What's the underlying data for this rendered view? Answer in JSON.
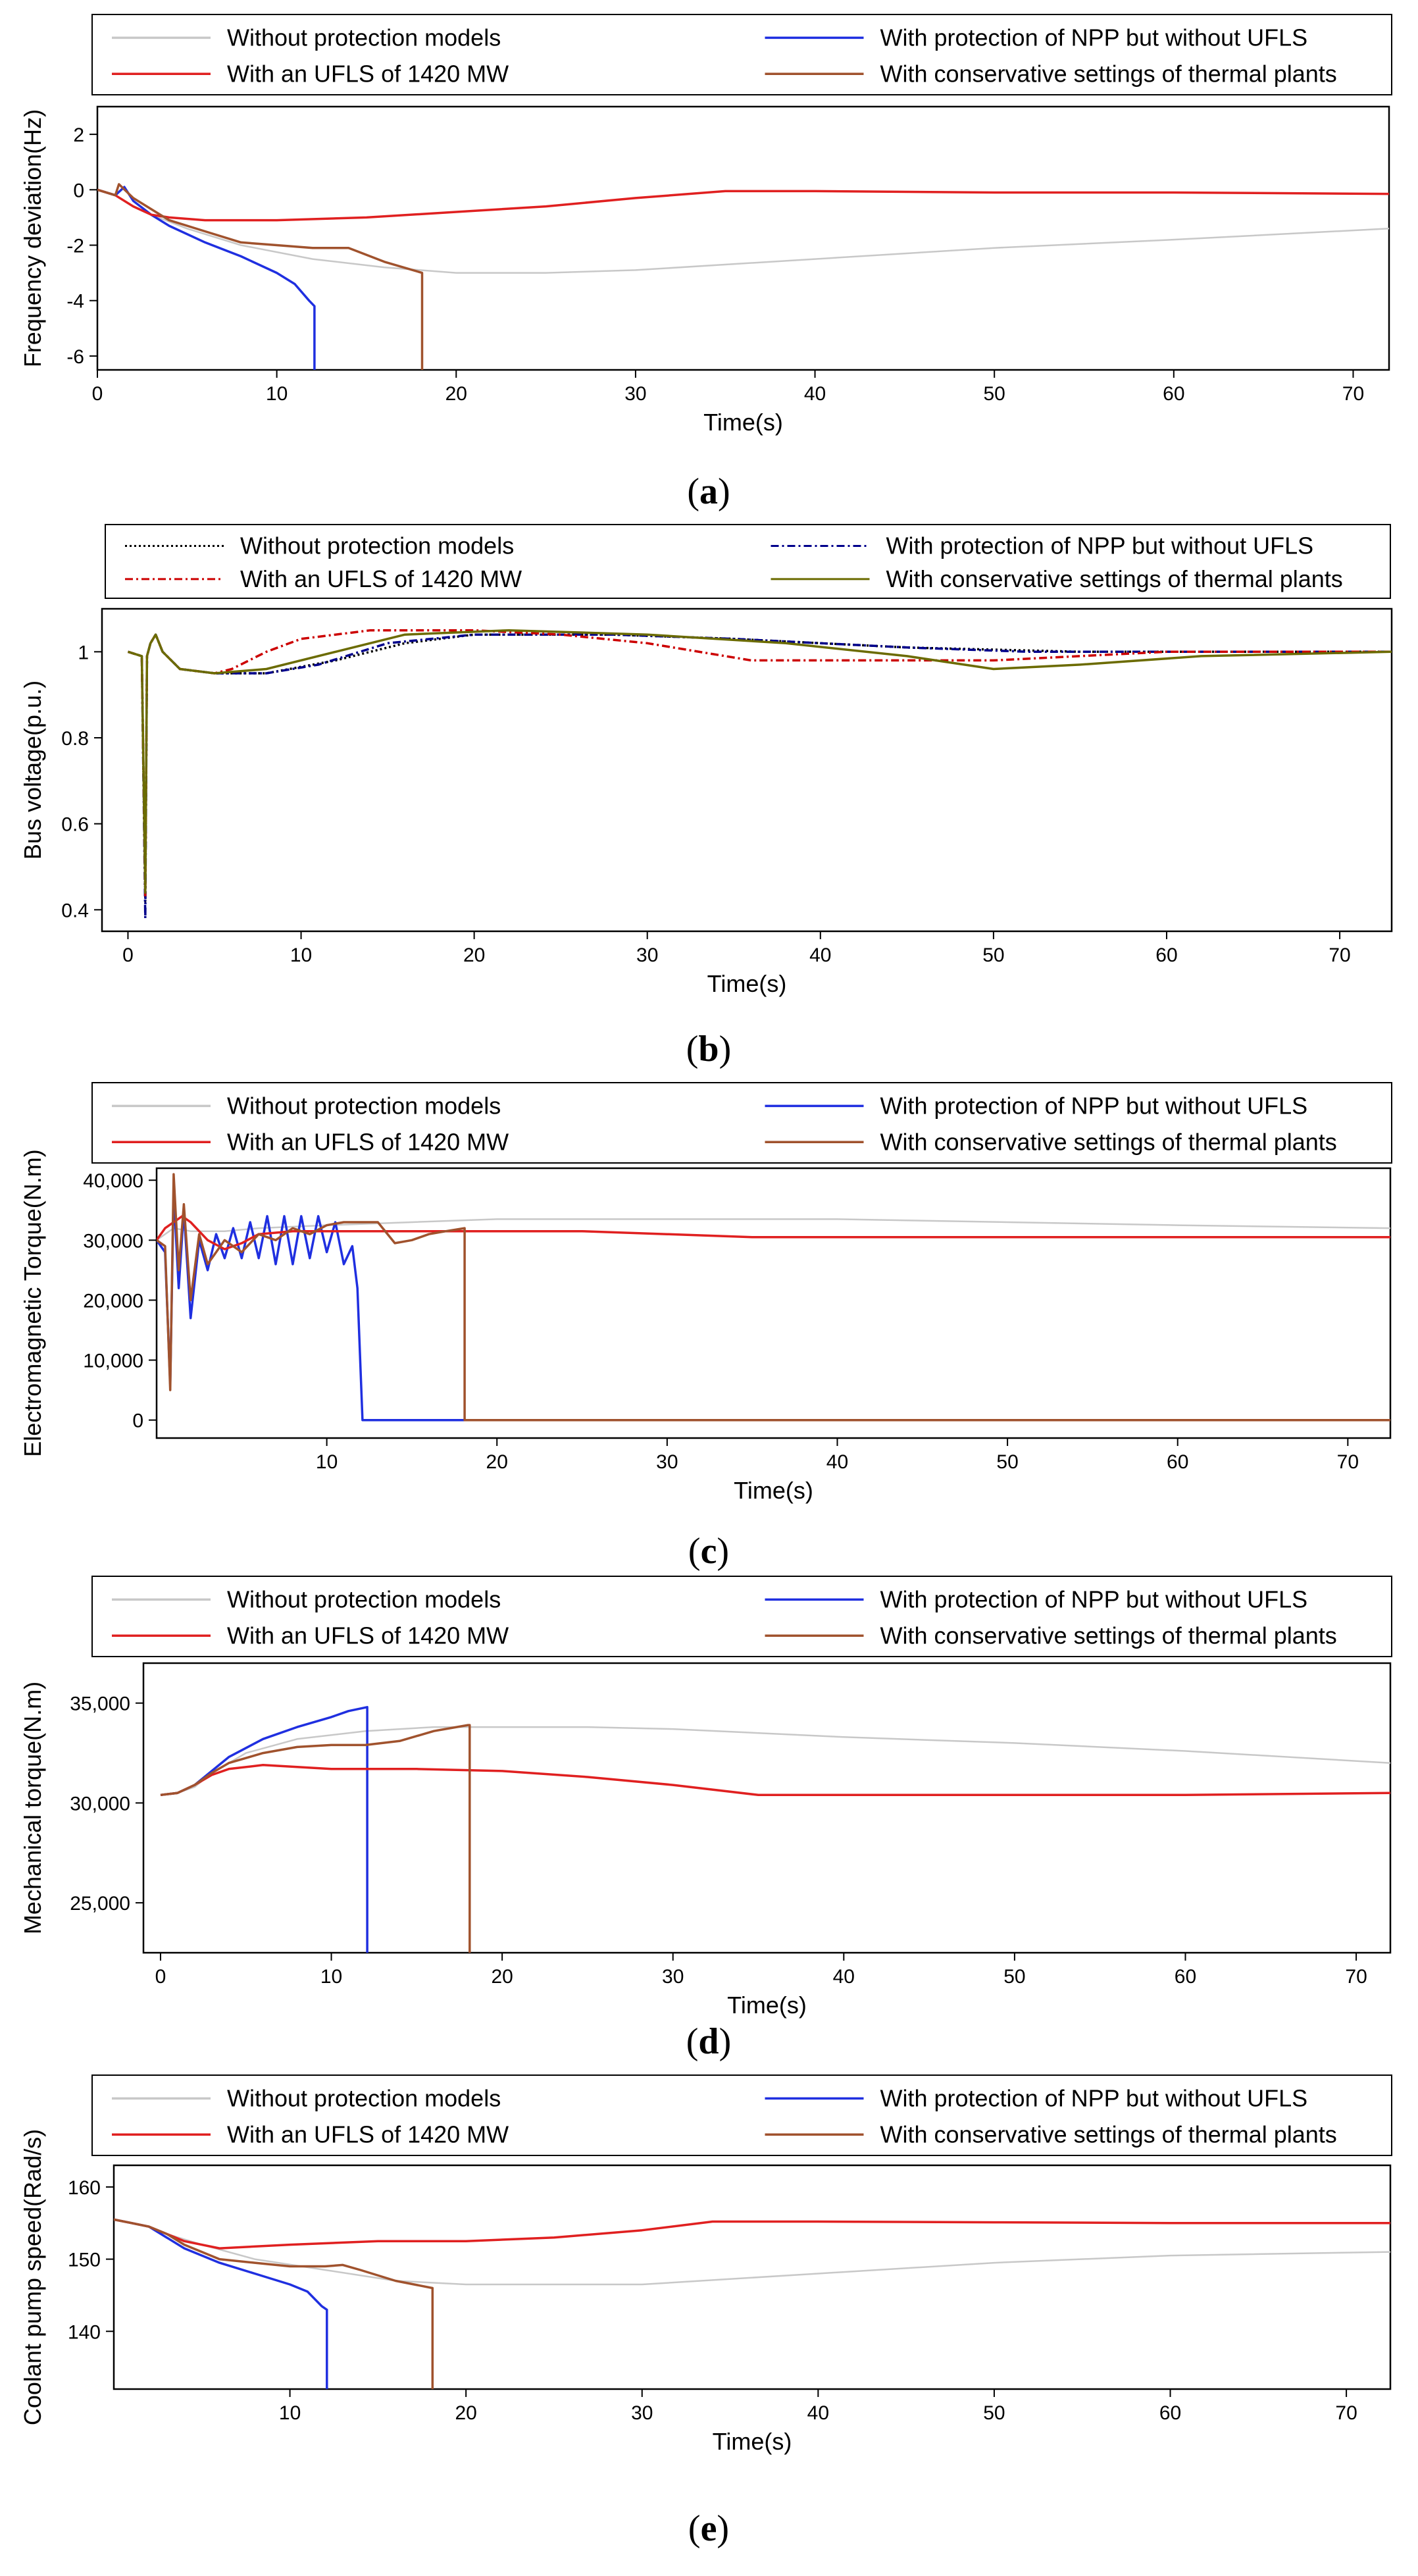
{
  "legend_series": {
    "without": "Without protection models",
    "npp": "With protection of NPP but without UFLS",
    "ufls": "With an UFLS of 1420 MW",
    "conservative": "With conservative settings of thermal plants"
  },
  "colors": {
    "without": "#c8c8c8",
    "npp": "#1f2fe0",
    "ufls": "#e02020",
    "conservative": "#a0522d",
    "without_b": "#000000",
    "npp_b": "#00008b",
    "ufls_b": "#cc0000",
    "conservative_b": "#6b6b00"
  },
  "chart_data": [
    {
      "panel": "a",
      "type": "line",
      "label_open": "(",
      "label_letter": "a",
      "label_close": ")",
      "xlabel": "Time(s)",
      "ylabel": "Frequency deviation(Hz)",
      "xlim": [
        0,
        72
      ],
      "ylim": [
        -6.5,
        3
      ],
      "xticks": [
        0,
        10,
        20,
        30,
        40,
        50,
        60,
        70
      ],
      "xtick_labels": [
        "0",
        "10",
        "20",
        "30",
        "40",
        "50",
        "60",
        "70"
      ],
      "yticks": [
        2,
        0,
        -2,
        -4,
        -6
      ],
      "ytick_labels": [
        "2",
        "0",
        "-2",
        "-4",
        "-6"
      ],
      "series": [
        {
          "key": "without",
          "x": [
            0,
            1,
            2,
            3,
            5,
            8,
            12,
            16,
            20,
            25,
            30,
            40,
            50,
            60,
            72
          ],
          "y": [
            0,
            -0.2,
            -0.6,
            -0.9,
            -1.4,
            -2.0,
            -2.5,
            -2.8,
            -3.0,
            -3.0,
            -2.9,
            -2.5,
            -2.1,
            -1.8,
            -1.4
          ]
        },
        {
          "key": "npp",
          "x": [
            0,
            1,
            1.5,
            2,
            3,
            4,
            6,
            8,
            10,
            11,
            11.8,
            12.1,
            12.1
          ],
          "y": [
            0,
            -0.2,
            0.1,
            -0.4,
            -0.9,
            -1.3,
            -1.9,
            -2.4,
            -3.0,
            -3.4,
            -4.0,
            -4.2,
            -6.5
          ]
        },
        {
          "key": "ufls",
          "x": [
            0,
            1,
            2,
            3,
            4,
            6,
            10,
            15,
            20,
            25,
            30,
            35,
            40,
            50,
            60,
            72
          ],
          "y": [
            0,
            -0.2,
            -0.6,
            -0.9,
            -1.0,
            -1.1,
            -1.1,
            -1.0,
            -0.8,
            -0.6,
            -0.3,
            -0.05,
            -0.05,
            -0.1,
            -0.1,
            -0.15
          ]
        },
        {
          "key": "conservative",
          "x": [
            0,
            1,
            1.2,
            2,
            3,
            4,
            6,
            8,
            10,
            12,
            14,
            16,
            18.1,
            18.1
          ],
          "y": [
            0,
            -0.2,
            0.2,
            -0.3,
            -0.7,
            -1.1,
            -1.5,
            -1.9,
            -2.0,
            -2.1,
            -2.1,
            -2.6,
            -3.0,
            -6.5
          ]
        }
      ]
    },
    {
      "panel": "b",
      "type": "line",
      "label_open": "(",
      "label_letter": "b",
      "label_close": ")",
      "xlabel": "Time(s)",
      "ylabel": "Bus voltage(p.u.)",
      "xlim": [
        -1.5,
        73
      ],
      "ylim": [
        0.35,
        1.1
      ],
      "xticks": [
        0,
        10,
        20,
        30,
        40,
        50,
        60,
        70
      ],
      "xtick_labels": [
        "0",
        "10",
        "20",
        "30",
        "40",
        "50",
        "60",
        "70"
      ],
      "yticks": [
        1,
        0.8,
        0.6,
        0.4
      ],
      "ytick_labels": [
        "1",
        "0.8",
        "0.6",
        "0.4"
      ],
      "series": [
        {
          "key": "without_b",
          "dash": "dotted",
          "x": [
            0,
            0.8,
            1.0,
            1.1,
            1.3,
            1.6,
            2,
            3,
            5,
            8,
            12,
            16,
            20,
            28,
            35,
            45,
            55,
            65,
            73
          ],
          "y": [
            1.0,
            0.99,
            0.42,
            0.99,
            1.02,
            1.04,
            1.0,
            0.96,
            0.95,
            0.95,
            0.98,
            1.02,
            1.04,
            1.04,
            1.03,
            1.01,
            1.0,
            1.0,
            1.0
          ]
        },
        {
          "key": "npp_b",
          "dash": "dashdot",
          "x": [
            0,
            0.8,
            1.0,
            1.1,
            1.3,
            1.6,
            2,
            3,
            5,
            8,
            11,
            15,
            20,
            28,
            35,
            45,
            52,
            60,
            73
          ],
          "y": [
            1.0,
            0.99,
            0.38,
            0.99,
            1.02,
            1.04,
            1.0,
            0.96,
            0.95,
            0.95,
            0.97,
            1.02,
            1.04,
            1.04,
            1.03,
            1.01,
            1.0,
            1.0,
            1.0
          ]
        },
        {
          "key": "ufls_b",
          "dash": "dashdot",
          "x": [
            0,
            0.8,
            1.0,
            1.1,
            1.3,
            1.6,
            2,
            3,
            5,
            6,
            8,
            10,
            14,
            20,
            25,
            30,
            36,
            42,
            50,
            55,
            60,
            73
          ],
          "y": [
            1.0,
            0.99,
            0.43,
            0.99,
            1.02,
            1.04,
            1.0,
            0.96,
            0.95,
            0.96,
            1.0,
            1.03,
            1.05,
            1.05,
            1.04,
            1.02,
            0.98,
            0.98,
            0.98,
            0.99,
            1.0,
            1.0
          ]
        },
        {
          "key": "conservative_b",
          "dash": "solid",
          "x": [
            0,
            0.8,
            1.0,
            1.1,
            1.3,
            1.6,
            2,
            3,
            5,
            8,
            12,
            16,
            22,
            30,
            38,
            45,
            50,
            55,
            62,
            73
          ],
          "y": [
            1.0,
            0.99,
            0.44,
            0.99,
            1.02,
            1.04,
            1.0,
            0.96,
            0.95,
            0.96,
            1.0,
            1.04,
            1.05,
            1.04,
            1.02,
            0.99,
            0.96,
            0.97,
            0.99,
            1.0
          ]
        }
      ]
    },
    {
      "panel": "c",
      "type": "line",
      "label_open": "(",
      "label_letter": "c",
      "label_close": ")",
      "xlabel": "Time(s)",
      "ylabel": "Electromagnetic Torque(N.m)",
      "xlim": [
        0,
        72.5
      ],
      "ylim": [
        -3000,
        42000
      ],
      "xticks": [
        10,
        20,
        30,
        40,
        50,
        60,
        70
      ],
      "xtick_labels": [
        "10",
        "20",
        "30",
        "40",
        "50",
        "60",
        "70"
      ],
      "yticks": [
        40000,
        30000,
        20000,
        10000,
        0
      ],
      "ytick_labels": [
        "40,000",
        "30,000",
        "20,000",
        "10,000",
        "0"
      ],
      "series": [
        {
          "key": "without",
          "x": [
            0,
            1,
            2,
            4,
            6,
            10,
            15,
            20,
            25,
            30,
            40,
            50,
            60,
            72.5
          ],
          "y": [
            30000,
            32000,
            31500,
            31500,
            32000,
            32500,
            33000,
            33500,
            33500,
            33500,
            33500,
            33000,
            32500,
            32000
          ]
        },
        {
          "key": "npp",
          "x": [
            0,
            0.5,
            0.8,
            1.0,
            1.3,
            1.6,
            2.0,
            2.5,
            3.0,
            3.5,
            4,
            4.5,
            5,
            5.5,
            6,
            6.5,
            7,
            7.5,
            8,
            8.5,
            9,
            9.5,
            10,
            10.5,
            11,
            11.5,
            11.8,
            12.1,
            12.1,
            72.5
          ],
          "y": [
            30000,
            28000,
            6000,
            38000,
            22000,
            35000,
            17000,
            30000,
            25000,
            31000,
            27000,
            32000,
            27000,
            33000,
            27000,
            34000,
            26000,
            34000,
            26000,
            34000,
            27000,
            34000,
            28000,
            33000,
            26000,
            29000,
            22000,
            0,
            0,
            0
          ]
        },
        {
          "key": "ufls",
          "x": [
            0,
            0.5,
            1.0,
            1.5,
            2,
            3,
            4,
            5,
            6,
            8,
            10,
            15,
            20,
            25,
            30,
            35,
            40,
            50,
            60,
            72.5
          ],
          "y": [
            30000,
            32000,
            33000,
            34000,
            33000,
            30000,
            28500,
            29500,
            31000,
            31500,
            31500,
            31500,
            31500,
            31500,
            31000,
            30500,
            30500,
            30500,
            30500,
            30500
          ]
        },
        {
          "key": "conservative",
          "x": [
            0,
            0.5,
            0.8,
            1.0,
            1.3,
            1.6,
            2,
            2.5,
            3,
            4,
            5,
            6,
            7,
            8,
            9,
            10,
            11,
            12,
            13,
            14,
            15,
            16,
            17,
            18.1,
            18.1,
            72.5
          ],
          "y": [
            30000,
            29000,
            5000,
            41000,
            25000,
            36000,
            20000,
            31000,
            26000,
            30000,
            28000,
            31000,
            30000,
            32000,
            31000,
            32500,
            33000,
            33000,
            33000,
            29500,
            30000,
            31000,
            31500,
            32000,
            0,
            0
          ]
        }
      ]
    },
    {
      "panel": "d",
      "type": "line",
      "label_open": "(",
      "label_letter": "d",
      "label_close": ")",
      "xlabel": "Time(s)",
      "ylabel": "Mechanical torque(N.m)",
      "xlim": [
        -1,
        72
      ],
      "ylim": [
        22500,
        37000
      ],
      "xticks": [
        0,
        10,
        20,
        30,
        40,
        50,
        60,
        70
      ],
      "xtick_labels": [
        "0",
        "10",
        "20",
        "30",
        "40",
        "50",
        "60",
        "70"
      ],
      "yticks": [
        35000,
        30000,
        25000
      ],
      "ytick_labels": [
        "35,000",
        "30,000",
        "25,000"
      ],
      "series": [
        {
          "key": "without",
          "x": [
            0,
            1,
            2,
            3,
            5,
            8,
            12,
            16,
            20,
            25,
            30,
            40,
            50,
            60,
            72
          ],
          "y": [
            30400,
            30500,
            30800,
            31500,
            32500,
            33200,
            33600,
            33800,
            33800,
            33800,
            33700,
            33300,
            33000,
            32600,
            32000
          ]
        },
        {
          "key": "npp",
          "x": [
            0,
            1,
            2,
            3,
            4,
            6,
            8,
            10,
            11,
            12.1,
            12.1
          ],
          "y": [
            30400,
            30500,
            30900,
            31600,
            32300,
            33200,
            33800,
            34300,
            34600,
            34800,
            22500
          ]
        },
        {
          "key": "ufls",
          "x": [
            0,
            1,
            2,
            3,
            4,
            6,
            8,
            10,
            15,
            20,
            25,
            30,
            35,
            40,
            50,
            60,
            72
          ],
          "y": [
            30400,
            30500,
            30900,
            31400,
            31700,
            31900,
            31800,
            31700,
            31700,
            31600,
            31300,
            30900,
            30400,
            30400,
            30400,
            30400,
            30500
          ]
        },
        {
          "key": "conservative",
          "x": [
            0,
            1,
            2,
            3,
            4,
            6,
            8,
            10,
            12,
            14,
            16,
            18,
            18.1,
            18.1
          ],
          "y": [
            30400,
            30500,
            30900,
            31500,
            32000,
            32500,
            32800,
            32900,
            32900,
            33100,
            33600,
            33900,
            33900,
            22500
          ]
        }
      ]
    },
    {
      "panel": "e",
      "type": "line",
      "label_open": "(",
      "label_letter": "e",
      "label_close": ")",
      "xlabel": "Time(s)",
      "ylabel": "Coolant pump speed(Rad/s)",
      "xlim": [
        0,
        72.5
      ],
      "ylim": [
        132,
        163
      ],
      "xticks": [
        10,
        20,
        30,
        40,
        50,
        60,
        70
      ],
      "xtick_labels": [
        "10",
        "20",
        "30",
        "40",
        "50",
        "60",
        "70"
      ],
      "yticks": [
        160,
        150,
        140
      ],
      "ytick_labels": [
        "160",
        "150",
        "140"
      ],
      "series": [
        {
          "key": "without",
          "x": [
            0,
            1,
            2,
            3,
            5,
            8,
            12,
            16,
            20,
            25,
            30,
            40,
            50,
            60,
            72.5
          ],
          "y": [
            155.5,
            155,
            154.5,
            153.5,
            152,
            150,
            148.5,
            147,
            146.5,
            146.5,
            146.5,
            148,
            149.5,
            150.5,
            151
          ]
        },
        {
          "key": "npp",
          "x": [
            0,
            1,
            2,
            3,
            4,
            5,
            6,
            8,
            10,
            11,
            11.8,
            12.1,
            12.1
          ],
          "y": [
            155.5,
            155,
            154.5,
            153,
            151.5,
            150.5,
            149.5,
            148,
            146.5,
            145.5,
            143.5,
            143,
            132
          ]
        },
        {
          "key": "ufls",
          "x": [
            0,
            1,
            2,
            3,
            4,
            6,
            10,
            15,
            20,
            25,
            30,
            34,
            40,
            50,
            60,
            72.5
          ],
          "y": [
            155.5,
            155,
            154.5,
            153.5,
            152.5,
            151.5,
            152,
            152.5,
            152.5,
            153,
            154,
            155.2,
            155.2,
            155.1,
            155,
            155
          ]
        },
        {
          "key": "conservative",
          "x": [
            0,
            1,
            2,
            3,
            4,
            5,
            6,
            8,
            10,
            12,
            13,
            14,
            16,
            18.1,
            18.1
          ],
          "y": [
            155.5,
            155,
            154.5,
            153.5,
            152,
            151,
            150,
            149.5,
            149,
            149,
            149.2,
            148.5,
            147,
            146,
            132
          ]
        }
      ]
    }
  ]
}
